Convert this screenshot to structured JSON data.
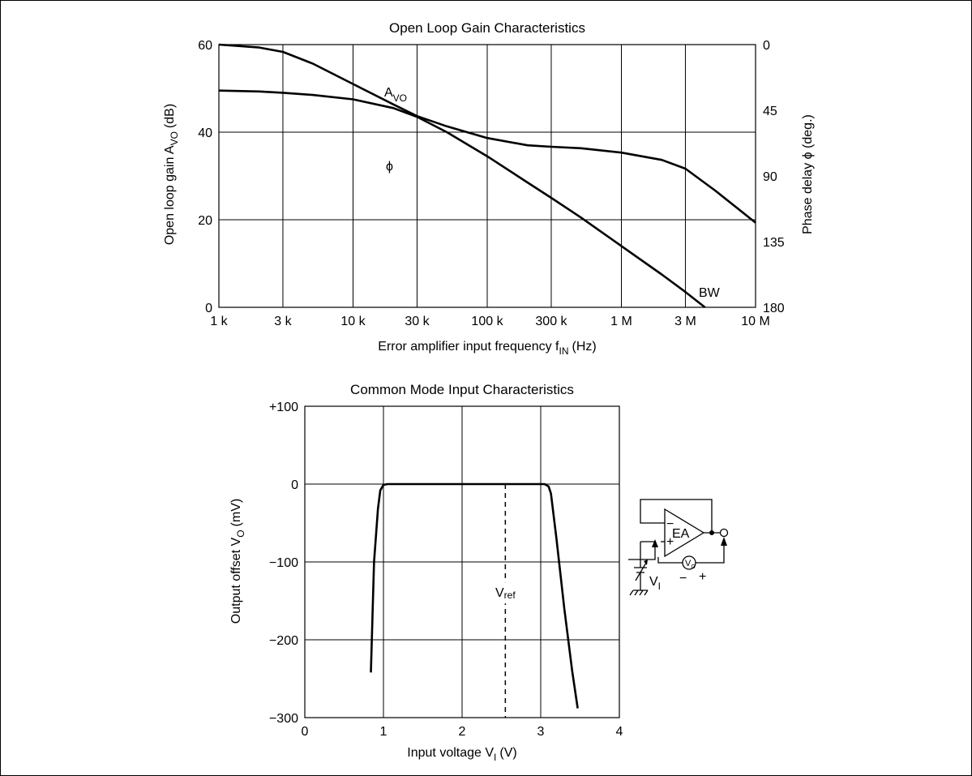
{
  "chart_data": [
    {
      "type": "line",
      "title": "Open Loop Gain Characteristics",
      "xlabel": "Error amplifier input frequency f",
      "xlabel_sub": "IN",
      "xlabel_unit": "(Hz)",
      "ylabel": "Open loop gain A",
      "ylabel_sub": "VO",
      "ylabel_unit": "(dB)",
      "y2label": "Phase delay ϕ (deg.)",
      "xscale": "log",
      "xlim": [
        1000,
        10000000
      ],
      "ylim": [
        0,
        60
      ],
      "y2lim": [
        180,
        0
      ],
      "grid": true,
      "x_ticks": [
        1000,
        3000,
        10000,
        30000,
        100000,
        300000,
        1000000,
        3000000,
        10000000
      ],
      "x_tick_labels": [
        "1 k",
        "3 k",
        "10 k",
        "30 k",
        "100 k",
        "300 k",
        "1 M",
        "3 M",
        "10 M"
      ],
      "y_ticks": [
        0,
        20,
        40,
        60
      ],
      "y_tick_labels": [
        "0",
        "20",
        "40",
        "60"
      ],
      "y2_ticks": [
        0,
        45,
        90,
        135,
        180
      ],
      "y2_tick_labels": [
        "0",
        "45",
        "90",
        "135",
        "180"
      ],
      "series": [
        {
          "name": "A",
          "name_sub": "VO",
          "axis": "left",
          "x": [
            1000,
            2000,
            3000,
            5000,
            10000,
            20000,
            30000,
            50000,
            100000,
            200000,
            300000,
            500000,
            1000000,
            2000000,
            3000000,
            4200000
          ],
          "y": [
            49.5,
            49.3,
            49,
            48.5,
            47.5,
            45.5,
            43.5,
            40,
            34.5,
            28.5,
            25,
            20.5,
            14,
            7.5,
            3.5,
            0
          ]
        },
        {
          "name": "ϕ",
          "axis": "right",
          "x": [
            1000,
            2000,
            3000,
            5000,
            10000,
            20000,
            30000,
            50000,
            100000,
            200000,
            300000,
            500000,
            1000000,
            2000000,
            3000000,
            5000000,
            10000000
          ],
          "y": [
            0,
            2,
            5,
            13,
            27,
            41,
            49,
            56,
            64,
            69,
            70,
            71,
            74,
            79,
            85,
            100,
            122
          ]
        }
      ],
      "annotations": [
        {
          "text": "BW",
          "x": 4200000,
          "y": 0
        }
      ]
    },
    {
      "type": "line",
      "title": "Common Mode Input Characteristics",
      "xlabel": "Input voltage V",
      "xlabel_sub": "I",
      "xlabel_unit": "(V)",
      "ylabel": "Output offset V",
      "ylabel_sub": "O",
      "ylabel_unit": "(mV)",
      "xlim": [
        0,
        4
      ],
      "ylim": [
        -300,
        100
      ],
      "grid": true,
      "x_ticks": [
        0,
        1,
        2,
        3,
        4
      ],
      "x_tick_labels": [
        "0",
        "1",
        "2",
        "3",
        "4"
      ],
      "y_ticks": [
        -300,
        -200,
        -100,
        0,
        100
      ],
      "y_tick_labels": [
        "−300",
        "−200",
        "−100",
        "0",
        "+100"
      ],
      "series": [
        {
          "x": [
            0.84,
            0.88,
            0.93,
            0.96,
            1.0,
            1.05,
            1.12,
            1.5,
            2.0,
            2.5,
            3.0,
            3.05,
            3.1,
            3.13,
            3.2,
            3.3,
            3.4,
            3.47
          ],
          "y": [
            -242,
            -100,
            -32,
            -8,
            -1,
            0,
            0,
            0,
            0,
            0,
            0,
            0,
            -3,
            -12,
            -70,
            -160,
            -240,
            -288
          ]
        }
      ],
      "vref": {
        "label": "V",
        "label_sub": "ref",
        "x": 2.55,
        "y_from": 0,
        "y_to": -300
      }
    }
  ],
  "inset_circuit": {
    "amp_label": "EA",
    "minus_sign": "−",
    "plus_sign": "+",
    "input_label": "V",
    "input_label_sub": "I",
    "meter_label": "V",
    "meter_label_sub": "O",
    "meter_minus": "−",
    "meter_plus": "+"
  }
}
